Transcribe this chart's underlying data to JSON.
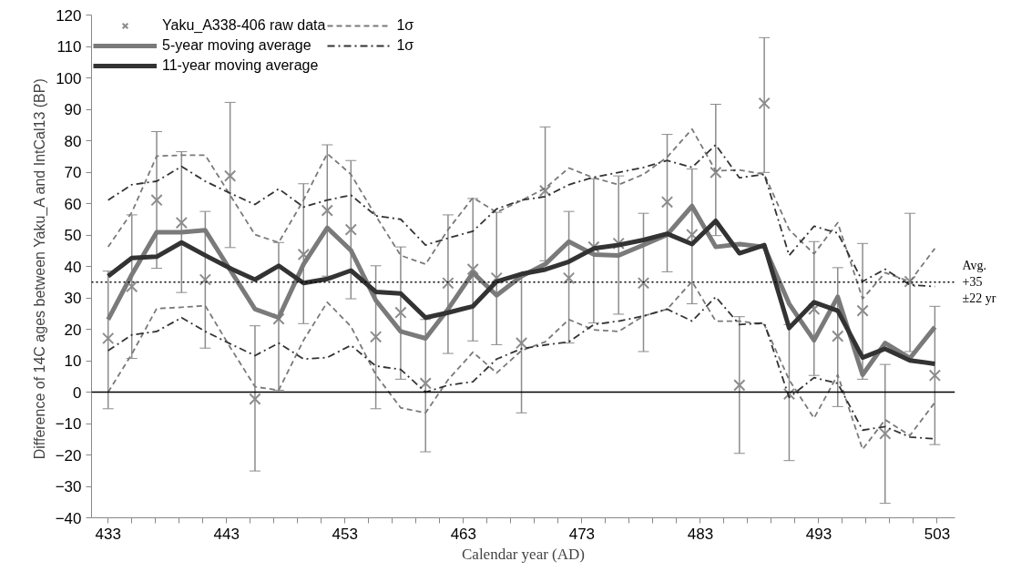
{
  "chart_data": {
    "type": "line",
    "xlabel": "Calendar year (AD)",
    "ylabel": "Difference of  14C ages between Yaku_A and IntCal13 (BP)",
    "x": [
      433.0,
      435.0,
      437.1,
      439.2,
      441.2,
      443.3,
      445.4,
      447.4,
      449.5,
      451.5,
      453.5,
      455.6,
      457.7,
      459.8,
      461.7,
      463.8,
      465.8,
      467.9,
      469.9,
      471.9,
      474.0,
      476.1,
      478.2,
      480.2,
      482.3,
      484.3,
      486.3,
      488.4,
      490.5,
      492.6,
      494.6,
      496.7,
      498.6,
      500.7,
      502.8
    ],
    "series": [
      {
        "name": "Yaku_A338-406 raw data",
        "type": "scatter",
        "marker": "cross",
        "color": "#8c8c8c",
        "values": [
          17.1,
          33.6,
          61.1,
          53.9,
          35.8,
          68.8,
          -2.2,
          23.3,
          43.8,
          57.8,
          51.7,
          17.6,
          25.3,
          2.8,
          34.7,
          39.1,
          36.3,
          15.6,
          64.1,
          36.3,
          46.2,
          47.3,
          34.7,
          60.5,
          50.1,
          69.9,
          2.2,
          91.9,
          -0.6,
          26.4,
          17.8,
          25.9,
          -13.2,
          35.2,
          5.3
        ],
        "errors": [
          [
            -5.3,
            38.5
          ],
          [
            10.7,
            56.4
          ],
          [
            39.4,
            82.9
          ],
          [
            31.7,
            76.5
          ],
          [
            14.0,
            57.5
          ],
          [
            46.0,
            92.2
          ],
          [
            -25.1,
            21.1
          ],
          [
            0.6,
            47.6
          ],
          [
            21.8,
            66.3
          ],
          [
            36.9,
            78.7
          ],
          [
            29.7,
            73.7
          ],
          [
            -5.3,
            40.2
          ],
          [
            4.1,
            46.2
          ],
          [
            -19.0,
            23.1
          ],
          [
            12.3,
            56.4
          ],
          [
            16.3,
            61.6
          ],
          [
            15.1,
            57.2
          ],
          [
            -6.6,
            37.4
          ],
          [
            41.8,
            84.4
          ],
          [
            15.6,
            57.5
          ],
          [
            22.0,
            67.9
          ],
          [
            24.8,
            68.8
          ],
          [
            12.9,
            56.9
          ],
          [
            38.3,
            82.0
          ],
          [
            28.1,
            71.0
          ],
          [
            49.8,
            91.6
          ],
          [
            -19.5,
            24.0
          ],
          [
            69.9,
            112.8
          ],
          [
            -21.8,
            21.5
          ],
          [
            5.3,
            47.9
          ],
          [
            -4.6,
            39.6
          ],
          [
            4.1,
            47.3
          ],
          [
            -35.4,
            8.8
          ],
          [
            12.9,
            56.9
          ],
          [
            -16.7,
            27.3
          ]
        ]
      },
      {
        "name": "5-year moving average",
        "type": "line",
        "line_style": "solid",
        "color": "#7a7a7a",
        "values": [
          23.1,
          37.4,
          50.9,
          50.9,
          51.5,
          38.9,
          26.4,
          23.7,
          40.7,
          52.3,
          45.1,
          29.2,
          19.3,
          17.1,
          26.4,
          38.0,
          30.8,
          36.9,
          40.7,
          47.9,
          43.8,
          43.5,
          46.8,
          50.1,
          59.2,
          46.2,
          47.1,
          46.2,
          28.1,
          16.5,
          30.3,
          5.5,
          15.6,
          10.8,
          20.7
        ]
      },
      {
        "name": "11-year moving average",
        "type": "line",
        "line_style": "solid",
        "color": "#333333",
        "values": [
          36.9,
          42.7,
          43.1,
          47.6,
          43.5,
          39.4,
          35.8,
          40.2,
          34.7,
          36.0,
          38.7,
          31.9,
          31.4,
          23.7,
          25.3,
          27.3,
          35.2,
          37.6,
          39.0,
          41.5,
          45.7,
          46.8,
          48.4,
          50.4,
          47.1,
          54.5,
          44.2,
          46.8,
          20.4,
          28.6,
          25.9,
          11.0,
          13.8,
          10.1,
          9.0
        ]
      },
      {
        "name": "1σ",
        "type": "line",
        "line_style": "dashed",
        "color": "#7a7a7a",
        "values": [
          46.2,
          57.2,
          75.1,
          75.4,
          75.4,
          62.7,
          50.1,
          47.6,
          61.1,
          75.9,
          69.3,
          56.1,
          43.5,
          40.7,
          51.7,
          61.9,
          57.2,
          61.0,
          64.9,
          71.3,
          68.2,
          66.0,
          69.3,
          74.8,
          83.7,
          70.4,
          70.7,
          69.3,
          51.7,
          44.0,
          53.9,
          29.7,
          38.0,
          35.2,
          45.7
        ]
      },
      {
        "name": "1σ",
        "type": "line",
        "line_style": "dashdot",
        "color": "#333333",
        "values": [
          61.1,
          66.0,
          67.1,
          71.8,
          67.1,
          63.3,
          59.7,
          64.7,
          58.9,
          61.1,
          62.7,
          56.1,
          55.0,
          46.8,
          49.0,
          51.2,
          58.3,
          61.1,
          62.2,
          66.0,
          68.4,
          69.9,
          71.5,
          73.7,
          71.5,
          78.7,
          68.2,
          69.3,
          43.5,
          52.8,
          50.6,
          35.2,
          39.1,
          34.1,
          33.6
        ]
      },
      {
        "type": "line",
        "line_style": "dashed",
        "color": "#7a7a7a",
        "values": [
          0.0,
          12.1,
          26.6,
          27.0,
          27.5,
          14.3,
          1.7,
          0.6,
          16.5,
          28.6,
          20.9,
          5.5,
          -5.0,
          -6.6,
          3.9,
          12.7,
          6.1,
          13.2,
          16.0,
          23.1,
          19.8,
          19.3,
          24.2,
          26.4,
          35.2,
          22.6,
          22.6,
          21.5,
          3.9,
          -8.3,
          5.5,
          -18.2,
          -8.8,
          -13.8,
          -3.3
        ]
      },
      {
        "type": "line",
        "line_style": "dashdot",
        "color": "#333333",
        "values": [
          13.2,
          18.2,
          19.3,
          23.7,
          19.3,
          15.4,
          11.6,
          15.6,
          10.5,
          11.0,
          14.9,
          8.3,
          7.2,
          0.0,
          2.2,
          3.3,
          10.5,
          13.8,
          15.0,
          16.0,
          21.5,
          22.6,
          24.2,
          26.4,
          22.6,
          30.3,
          21.5,
          22.0,
          -1.7,
          4.6,
          2.8,
          -12.1,
          -11.0,
          -14.3,
          -14.9
        ]
      }
    ],
    "xlim": [
      431.6,
      504.5
    ],
    "xticks": [
      433,
      {
        "value": 435,
        "label": null
      },
      {
        "value": 437,
        "label": null
      },
      {
        "value": 439,
        "label": null
      },
      {
        "value": 441,
        "label": null
      },
      443,
      {
        "value": 445,
        "label": null
      },
      {
        "value": 447,
        "label": null
      },
      {
        "value": 449,
        "label": null
      },
      {
        "value": 451,
        "label": null
      },
      453,
      {
        "value": 455,
        "label": null
      },
      {
        "value": 457,
        "label": null
      },
      {
        "value": 459,
        "label": null
      },
      {
        "value": 461,
        "label": null
      },
      463,
      {
        "value": 465,
        "label": null
      },
      {
        "value": 467,
        "label": null
      },
      {
        "value": 469,
        "label": null
      },
      {
        "value": 471,
        "label": null
      },
      473,
      {
        "value": 475,
        "label": null
      },
      {
        "value": 477,
        "label": null
      },
      {
        "value": 479,
        "label": null
      },
      {
        "value": 481,
        "label": null
      },
      483,
      {
        "value": 485,
        "label": null
      },
      {
        "value": 487,
        "label": null
      },
      {
        "value": 489,
        "label": null
      },
      {
        "value": 491,
        "label": null
      },
      493,
      {
        "value": 495,
        "label": null
      },
      {
        "value": 497,
        "label": null
      },
      {
        "value": 499,
        "label": null
      },
      {
        "value": 501,
        "label": null
      },
      503
    ],
    "ylim": [
      -40,
      120
    ],
    "yticks": [
      -40,
      -30,
      -20,
      -10,
      0,
      10,
      20,
      30,
      40,
      50,
      60,
      70,
      80,
      90,
      100,
      110,
      120
    ],
    "ref_lines": [
      {
        "axis": "y",
        "value": 35,
        "label": "Avg.\n+35\n±22 yr",
        "line_style": "dotted",
        "color": "#000000"
      },
      {
        "axis": "y",
        "value": 0,
        "label": null,
        "line_style": "solid",
        "color": "#000000"
      }
    ],
    "legend": "top left",
    "grid": false
  }
}
